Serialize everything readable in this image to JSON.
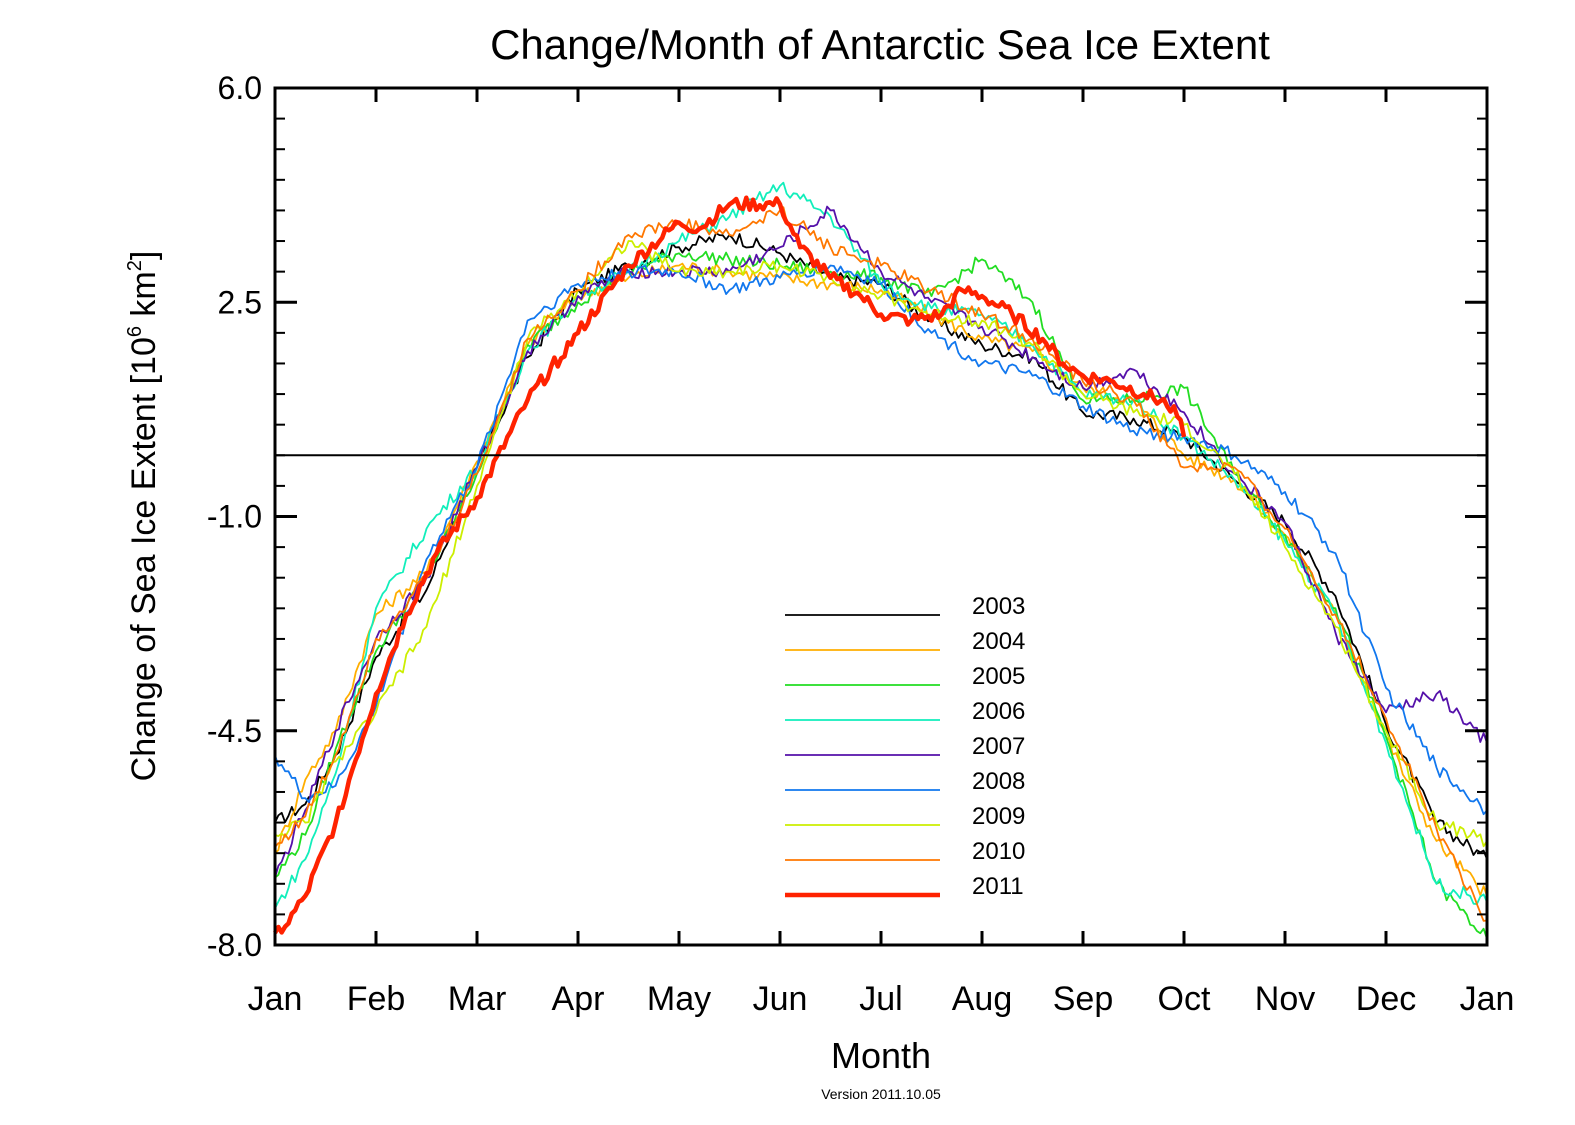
{
  "chart_data": {
    "type": "line",
    "title": "Change/Month of Antarctic Sea Ice Extent",
    "xlabel": "Month",
    "ylabel_main": "Change of Sea Ice Extent [10",
    "ylabel_exp": "6",
    "ylabel_unit": " km",
    "ylabel_sq": "2",
    "ylabel_close": "]",
    "footnote": "Version 2011.10.05",
    "ylim": [
      -8.0,
      6.0
    ],
    "yticks": [
      6.0,
      2.5,
      -1.0,
      -4.5,
      -8.0
    ],
    "ytick_labels": [
      "6.0",
      "2.5",
      "-1.0",
      "-4.5",
      "-8.0"
    ],
    "xlim": [
      0,
      12
    ],
    "xtick_labels": [
      "Jan",
      "Feb",
      "Mar",
      "Apr",
      "May",
      "Jun",
      "Jul",
      "Aug",
      "Sep",
      "Oct",
      "Nov",
      "Dec",
      "Jan"
    ],
    "reference_line_y": 0.0,
    "legend_position": "lower-center",
    "grid": false,
    "series": [
      {
        "name": "2003",
        "color": "#000000",
        "width": 1.8,
        "x": [
          0,
          0.3,
          0.6,
          1,
          1.5,
          2,
          2.5,
          3,
          3.5,
          4,
          4.5,
          5,
          5.5,
          6,
          6.5,
          7,
          7.5,
          8,
          8.5,
          9,
          9.5,
          10,
          10.5,
          11,
          11.5,
          12
        ],
        "y": [
          -6.0,
          -5.7,
          -4.9,
          -3.3,
          -2.2,
          -0.2,
          1.6,
          2.7,
          3.1,
          3.4,
          3.6,
          3.3,
          2.9,
          2.8,
          2.2,
          1.8,
          1.6,
          0.7,
          0.6,
          0.3,
          -0.4,
          -1.1,
          -2.3,
          -4.4,
          -6.0,
          -6.6
        ]
      },
      {
        "name": "2004",
        "color": "#ffae00",
        "width": 1.8,
        "x": [
          0,
          0.3,
          0.6,
          1,
          1.5,
          2,
          2.5,
          3,
          3.5,
          4,
          4.5,
          5,
          5.5,
          6,
          6.5,
          7,
          7.5,
          8,
          8.5,
          9,
          9.5,
          10,
          10.5,
          11,
          11.5,
          12
        ],
        "y": [
          -6.5,
          -5.3,
          -4.5,
          -2.6,
          -1.9,
          -0.1,
          1.8,
          2.6,
          2.9,
          3.1,
          3.0,
          2.9,
          2.8,
          2.7,
          2.3,
          1.9,
          1.7,
          1.1,
          0.9,
          0.0,
          -0.4,
          -1.3,
          -2.6,
          -4.6,
          -6.3,
          -7.2
        ]
      },
      {
        "name": "2005",
        "color": "#22dd22",
        "width": 1.8,
        "x": [
          0,
          0.3,
          0.6,
          1,
          1.5,
          2,
          2.5,
          3,
          3.5,
          4,
          4.5,
          5,
          5.5,
          6,
          6.5,
          7,
          7.5,
          8,
          8.5,
          9,
          9.5,
          10,
          10.5,
          11,
          11.5,
          12
        ],
        "y": [
          -6.9,
          -6.2,
          -4.8,
          -3.2,
          -2.0,
          -0.3,
          1.8,
          2.5,
          3.0,
          3.3,
          3.2,
          3.1,
          3.0,
          2.9,
          2.6,
          3.2,
          2.5,
          0.9,
          0.9,
          1.1,
          -0.3,
          -1.3,
          -2.5,
          -4.6,
          -7.0,
          -7.9
        ]
      },
      {
        "name": "2006",
        "color": "#11eebb",
        "width": 1.8,
        "x": [
          0,
          0.3,
          0.6,
          1,
          1.5,
          2,
          2.5,
          3,
          3.5,
          4,
          4.5,
          5,
          5.5,
          6,
          6.5,
          7,
          7.5,
          8,
          8.5,
          9,
          9.5,
          10,
          10.5,
          11,
          11.5,
          12
        ],
        "y": [
          -7.4,
          -6.6,
          -5.2,
          -2.5,
          -1.2,
          -0.2,
          1.7,
          2.6,
          3.0,
          3.5,
          3.9,
          4.4,
          3.9,
          2.8,
          2.4,
          2.3,
          1.8,
          1.0,
          0.9,
          0.3,
          -0.4,
          -1.4,
          -2.6,
          -4.7,
          -7.0,
          -7.3
        ]
      },
      {
        "name": "2007",
        "color": "#5511aa",
        "width": 1.8,
        "x": [
          0,
          0.3,
          0.6,
          1,
          1.5,
          2,
          2.5,
          3,
          3.5,
          4,
          4.5,
          5,
          5.5,
          6,
          6.5,
          7,
          7.5,
          8,
          8.5,
          9,
          9.5,
          10,
          10.5,
          11,
          11.5,
          12
        ],
        "y": [
          -6.9,
          -5.8,
          -4.5,
          -3.0,
          -2.0,
          -0.2,
          1.7,
          2.6,
          3.0,
          3.0,
          3.0,
          3.4,
          4.0,
          3.0,
          2.5,
          2.1,
          1.6,
          1.1,
          1.4,
          0.7,
          -0.3,
          -1.1,
          -2.9,
          -4.2,
          -3.9,
          -4.7
        ]
      },
      {
        "name": "2008",
        "color": "#1177ee",
        "width": 1.8,
        "x": [
          0,
          0.3,
          0.6,
          1,
          1.5,
          2,
          2.5,
          3,
          3.5,
          4,
          4.5,
          5,
          5.5,
          6,
          6.5,
          7,
          7.5,
          8,
          8.5,
          9,
          9.5,
          10,
          10.5,
          11,
          11.5,
          12
        ],
        "y": [
          -4.9,
          -5.6,
          -5.4,
          -4.1,
          -1.7,
          -0.2,
          2.2,
          2.8,
          3.0,
          3.0,
          2.7,
          2.9,
          3.1,
          2.8,
          2.0,
          1.5,
          1.3,
          0.8,
          0.4,
          0.3,
          0.0,
          -0.6,
          -1.6,
          -3.8,
          -5.1,
          -5.8
        ]
      },
      {
        "name": "2009",
        "color": "#ccee00",
        "width": 1.8,
        "x": [
          0,
          0.3,
          0.6,
          1,
          1.5,
          2,
          2.5,
          3,
          3.5,
          4,
          4.5,
          5,
          5.5,
          6,
          6.5,
          7,
          7.5,
          8,
          8.5,
          9,
          9.5,
          10,
          10.5,
          11,
          11.5,
          12
        ],
        "y": [
          -6.2,
          -6.0,
          -5.0,
          -4.2,
          -2.8,
          -0.5,
          1.9,
          2.7,
          3.5,
          3.0,
          3.0,
          3.1,
          2.9,
          2.6,
          2.3,
          2.2,
          1.8,
          1.0,
          0.7,
          0.5,
          -0.3,
          -1.5,
          -2.8,
          -4.5,
          -6.0,
          -6.3
        ]
      },
      {
        "name": "2010",
        "color": "#ff7700",
        "width": 1.8,
        "x": [
          0,
          0.3,
          0.6,
          1,
          1.5,
          2,
          2.5,
          3,
          3.5,
          4,
          4.5,
          5,
          5.5,
          6,
          6.5,
          7,
          7.5,
          8,
          8.5,
          9,
          9.5,
          10,
          10.5,
          11,
          11.5,
          12
        ],
        "y": [
          -6.4,
          -5.9,
          -4.9,
          -3.0,
          -2.0,
          -0.3,
          1.9,
          2.7,
          3.6,
          3.8,
          3.6,
          4.0,
          3.4,
          3.1,
          2.7,
          2.3,
          1.9,
          1.2,
          0.9,
          -0.2,
          -0.2,
          -1.2,
          -2.6,
          -4.3,
          -6.1,
          -7.6
        ]
      },
      {
        "name": "2011",
        "color": "#ff2200",
        "width": 4.5,
        "x": [
          0,
          0.1,
          0.3,
          0.6,
          1,
          1.3,
          1.6,
          2,
          2.5,
          3,
          3.5,
          4,
          4.2,
          4.5,
          5,
          5.2,
          5.5,
          5.8,
          6,
          6.3,
          6.6,
          6.8,
          7,
          7.3,
          7.6,
          7.8,
          8,
          8.3,
          8.6,
          8.9,
          9
        ],
        "y": [
          -7.8,
          -7.7,
          -7.2,
          -6.0,
          -3.9,
          -2.6,
          -1.6,
          -0.7,
          0.9,
          2.0,
          3.1,
          3.8,
          3.7,
          4.1,
          4.1,
          3.4,
          2.9,
          2.6,
          2.3,
          2.2,
          2.3,
          2.7,
          2.6,
          2.3,
          1.9,
          1.5,
          1.3,
          1.2,
          1.0,
          0.8,
          0.3
        ]
      }
    ]
  }
}
